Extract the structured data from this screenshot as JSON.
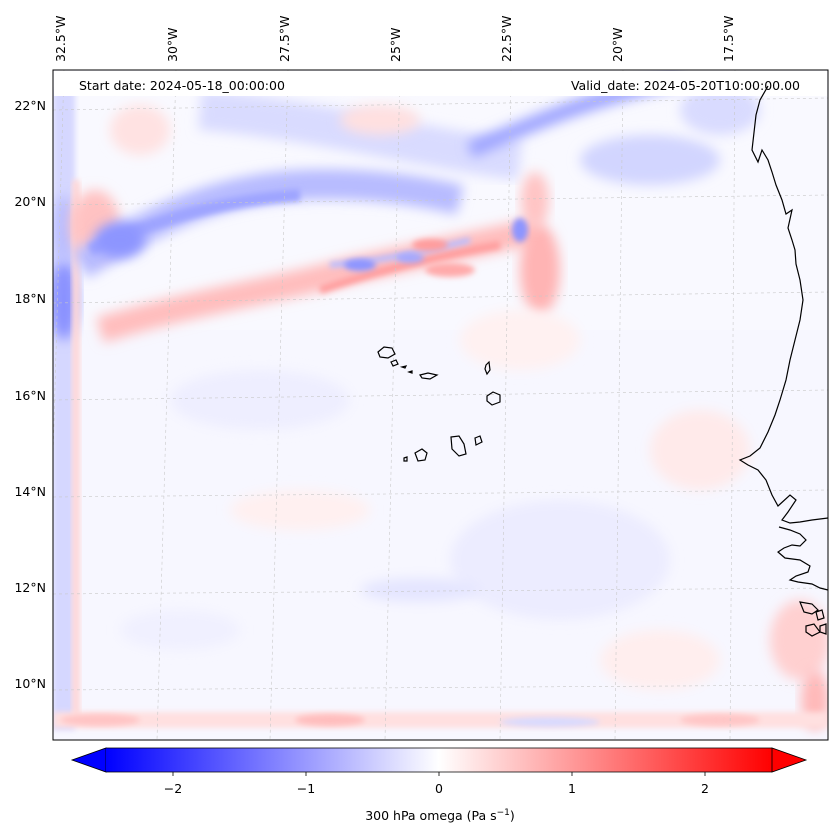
{
  "header": {
    "start_date": "Start date: 2024-05-18_00:00:00",
    "valid_date": "Valid_date: 2024-05-20T10:00:00.00"
  },
  "axes": {
    "lon_labels": [
      "32.5°W",
      "30°W",
      "27.5°W",
      "25°W",
      "22.5°W",
      "20°W",
      "17.5°W"
    ],
    "lat_labels": [
      "22°N",
      "20°N",
      "18°N",
      "16°N",
      "14°N",
      "12°N",
      "10°N"
    ]
  },
  "colorbar": {
    "tick_labels": [
      "−2",
      "−1",
      "0",
      "1",
      "2"
    ],
    "tick_values": [
      -2,
      -1,
      0,
      1,
      2
    ],
    "range": [
      -2.5,
      2.5
    ],
    "label": "300 hPa omega (Pa s",
    "label_superscript": "−1",
    "label_suffix": ")",
    "colors": {
      "negative": "#0000ff",
      "zero": "#ffffff",
      "positive": "#ff0000"
    }
  },
  "map": {
    "field": "300 hPa omega",
    "features": [
      "Cape Verde islands",
      "West African coastline"
    ]
  }
}
